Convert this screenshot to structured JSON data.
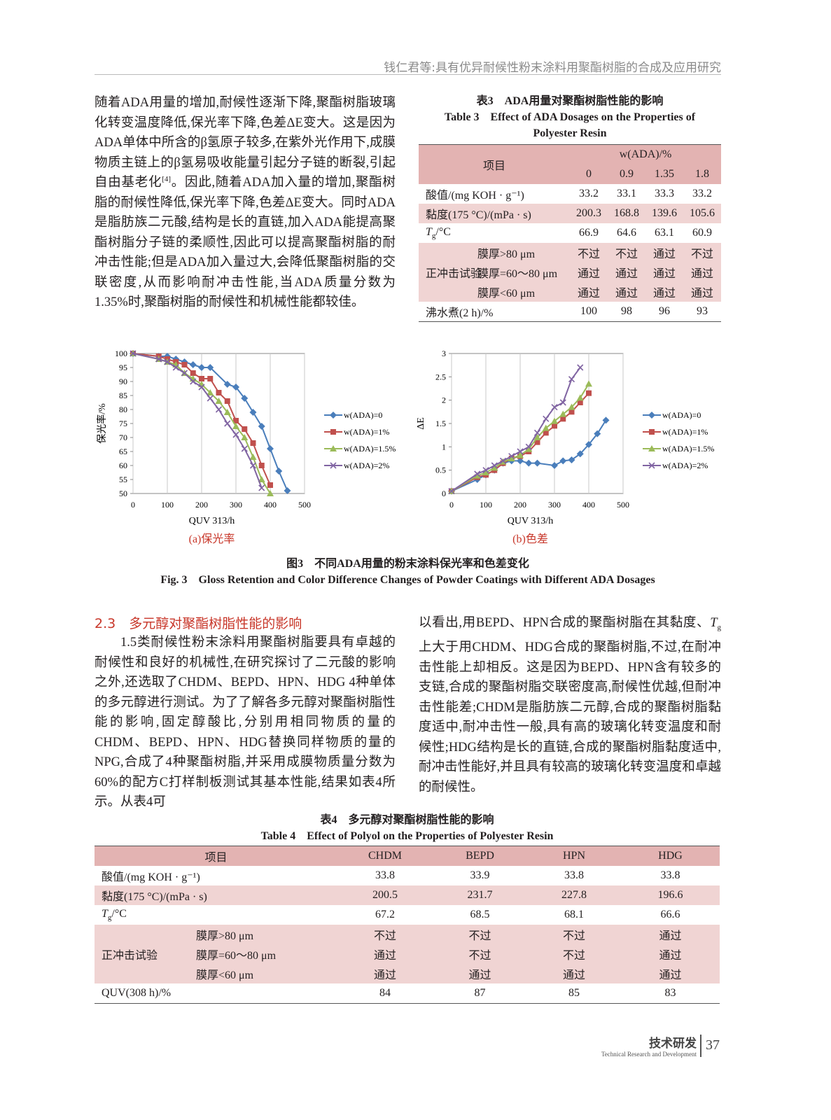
{
  "header": {
    "running_title": "钱仁君等:具有优异耐候性粉末涂料用聚酯树脂的合成及应用研究"
  },
  "body": {
    "paragraph_1": [
      "随着ADA用量的增加,耐候性逐渐下降,聚酯树脂玻璃化转变温度降低,保光率下降,色差ΔE变大。这是因为ADA单体中所含的β氢原子较多,在紫外光作用下,成膜物质主链上的β氢易吸收能量引起分子链的断裂,引起自由基老化",
      "[4]",
      "。因此,随着ADA加入量的增加,聚酯树脂的耐候性降低,保光率下降,色差ΔE变大。同时ADA是脂肪族二元酸,结构是长的直链,加入ADA能提高聚酯树脂分子链的柔顺性,因此可以提高聚酯树脂的耐冲击性能;但是ADA加入量过大,会降低聚酯树脂的交联密度,从而影响耐冲击性能,当ADA质量分数为1.35%时,聚酯树脂的耐候性和机械性能都较佳。"
    ]
  },
  "table3": {
    "title_cn": "表3　ADA用量对聚酯树脂性能的影响",
    "title_en": "Table 3　Effect of ADA Dosages on the Properties of Polyester Resin",
    "header": {
      "item": "项目",
      "group": "w(ADA)/%",
      "columns": [
        0,
        0.9,
        1.35,
        1.8
      ]
    },
    "rows": [
      {
        "label": "酸值/(mg KOH · g⁻¹)",
        "values": [
          33.2,
          33.1,
          33.3,
          33.2
        ]
      },
      {
        "label": "黏度(175 °C)/(mPa · s)",
        "values": [
          200.3,
          168.8,
          139.6,
          105.6
        ]
      },
      {
        "label": [
          "T",
          "g",
          "/°C"
        ],
        "values": [
          66.9,
          64.6,
          63.1,
          60.9
        ]
      },
      {
        "group": "正冲击试验",
        "rows": [
          {
            "label": "膜厚>80 μm",
            "values": [
              "不过",
              "不过",
              "通过",
              "不过"
            ]
          },
          {
            "label": "膜厚=60～80 μm",
            "values": [
              "通过",
              "通过",
              "通过",
              "通过"
            ]
          },
          {
            "label": "膜厚<60 μm",
            "values": [
              "通过",
              "通过",
              "通过",
              "通过"
            ]
          }
        ]
      },
      {
        "label": "沸水煮(2 h)/%",
        "values": [
          100,
          98,
          96,
          93
        ]
      }
    ]
  },
  "chart_data": [
    {
      "type": "line",
      "subcaption": "(a)保光率",
      "xlabel": "QUV 313/h",
      "ylabel": "保光率/%",
      "xlim": [
        0,
        500
      ],
      "xticks": [
        0,
        100,
        200,
        300,
        400,
        500
      ],
      "ylim": [
        50,
        100
      ],
      "yticks": [
        50,
        55,
        60,
        65,
        70,
        75,
        80,
        85,
        90,
        95,
        100
      ],
      "grid": "x",
      "legend": "right",
      "series": [
        {
          "name": "w(ADA)=0",
          "color": "#4a7ebb",
          "marker": "diamond",
          "x": [
            0,
            75,
            100,
            125,
            150,
            175,
            200,
            225,
            275,
            300,
            325,
            350,
            375,
            400,
            425,
            450
          ],
          "values": [
            100,
            99,
            99,
            98,
            97,
            96,
            95,
            95,
            89,
            88,
            84,
            79,
            74,
            66,
            58,
            51
          ]
        },
        {
          "name": "w(ADA)=1%",
          "color": "#c0504d",
          "marker": "square",
          "x": [
            0,
            75,
            100,
            125,
            150,
            175,
            200,
            225,
            250,
            275,
            300,
            325,
            350,
            375,
            400
          ],
          "values": [
            100,
            99,
            98,
            97,
            96,
            93,
            91,
            91,
            86,
            83,
            76,
            73,
            68,
            60,
            53
          ]
        },
        {
          "name": "w(ADA)=1.5%",
          "color": "#9bbb59",
          "marker": "triangle",
          "x": [
            0,
            75,
            100,
            125,
            150,
            175,
            200,
            225,
            250,
            275,
            300,
            325,
            350,
            375,
            400
          ],
          "values": [
            100,
            98,
            97,
            96,
            93,
            91,
            89,
            86,
            83,
            79,
            74,
            70,
            63,
            55,
            50
          ]
        },
        {
          "name": "w(ADA)=2%",
          "color": "#8064a2",
          "marker": "x",
          "x": [
            0,
            75,
            100,
            125,
            150,
            175,
            200,
            225,
            250,
            275,
            300,
            325,
            350,
            375
          ],
          "values": [
            100,
            98,
            97,
            95,
            93,
            90,
            88,
            84,
            80,
            75,
            71,
            66,
            60,
            52
          ]
        }
      ]
    },
    {
      "type": "line",
      "subcaption": "(b)色差",
      "xlabel": "QUV 313/h",
      "ylabel": "ΔE",
      "xlim": [
        0,
        500
      ],
      "xticks": [
        0,
        100,
        200,
        300,
        400,
        500
      ],
      "ylim": [
        0,
        3
      ],
      "yticks": [
        0,
        0.5,
        1,
        1.5,
        2,
        2.5,
        3
      ],
      "grid": "x",
      "legend": "right",
      "series": [
        {
          "name": "w(ADA)=0",
          "color": "#4a7ebb",
          "marker": "diamond",
          "x": [
            0,
            75,
            100,
            125,
            150,
            175,
            200,
            225,
            250,
            300,
            325,
            350,
            375,
            400,
            425,
            450
          ],
          "values": [
            0.05,
            0.3,
            0.4,
            0.5,
            0.65,
            0.7,
            0.7,
            0.65,
            0.65,
            0.6,
            0.7,
            0.72,
            0.85,
            1.05,
            1.28,
            1.57
          ]
        },
        {
          "name": "w(ADA)=1%",
          "color": "#c0504d",
          "marker": "square",
          "x": [
            0,
            75,
            100,
            125,
            150,
            175,
            200,
            225,
            250,
            275,
            300,
            325,
            350,
            375,
            400
          ],
          "values": [
            0.05,
            0.35,
            0.4,
            0.5,
            0.65,
            0.75,
            0.8,
            0.9,
            1.1,
            1.3,
            1.45,
            1.6,
            1.75,
            1.95,
            2.15
          ]
        },
        {
          "name": "w(ADA)=1.5%",
          "color": "#9bbb59",
          "marker": "triangle",
          "x": [
            0,
            75,
            100,
            125,
            150,
            175,
            200,
            225,
            250,
            275,
            300,
            325,
            350,
            375,
            400
          ],
          "values": [
            0.05,
            0.38,
            0.45,
            0.55,
            0.68,
            0.75,
            0.82,
            0.95,
            1.2,
            1.4,
            1.55,
            1.7,
            1.85,
            2.05,
            2.35
          ]
        },
        {
          "name": "w(ADA)=2%",
          "color": "#8064a2",
          "marker": "x",
          "x": [
            0,
            75,
            100,
            125,
            150,
            175,
            200,
            225,
            250,
            275,
            300,
            325,
            350,
            375
          ],
          "values": [
            0.05,
            0.42,
            0.5,
            0.6,
            0.7,
            0.8,
            0.9,
            1.0,
            1.3,
            1.6,
            1.85,
            1.95,
            2.45,
            2.7
          ]
        }
      ]
    }
  ],
  "figure3": {
    "caption_cn": "图3　不同ADA用量的粉末涂料保光率和色差变化",
    "caption_en": "Fig. 3　Gloss Retention and Color Difference Changes of Powder Coatings with Different ADA Dosages"
  },
  "section_2_3": {
    "number": "2.3",
    "title": "多元醇对聚酯树脂性能的影响",
    "paragraph_left": "1.5类耐候性粉末涂料用聚酯树脂要具有卓越的耐候性和良好的机械性,在研究探讨了二元酸的影响之外,还选取了CHDM、BEPD、HPN、HDG 4种单体的多元醇进行测试。为了了解各多元醇对聚酯树脂性能的影响,固定醇酸比,分别用相同物质的量的CHDM、BEPD、HPN、HDG替换同样物质的量的NPG,合成了4种聚酯树脂,并采用成膜物质量分数为60%的配方C打样制板测试其基本性能,结果如表4所示。从表4可",
    "paragraph_right": [
      "以看出,用BEPD、HPN合成的聚酯树脂在其黏度、",
      "T",
      "g",
      "上大于用CHDM、HDG合成的聚酯树脂,不过,在耐冲击性能上却相反。这是因为BEPD、HPN含有较多的支链,合成的聚酯树脂交联密度高,耐候性优越,但耐冲击性能差;CHDM是脂肪族二元醇,合成的聚酯树脂黏度适中,耐冲击性一般,具有高的玻璃化转变温度和耐候性;HDG结构是长的直链,合成的聚酯树脂黏度适中,耐冲击性能好,并且具有较高的玻璃化转变温度和卓越的耐候性。"
    ]
  },
  "table4": {
    "title_cn": "表4　多元醇对聚酯树脂性能的影响",
    "title_en": "Table 4　Effect of Polyol on the Properties of Polyester Resin",
    "header": {
      "item": "项目",
      "columns": [
        "CHDM",
        "BEPD",
        "HPN",
        "HDG"
      ]
    },
    "rows": [
      {
        "label": "酸值/(mg KOH · g⁻¹)",
        "values": [
          33.8,
          33.9,
          33.8,
          33.8
        ]
      },
      {
        "label": "黏度(175 °C)/(mPa · s)",
        "values": [
          200.5,
          231.7,
          227.8,
          196.6
        ]
      },
      {
        "label": [
          "T",
          "g",
          "/°C"
        ],
        "values": [
          67.2,
          68.5,
          68.1,
          66.6
        ]
      },
      {
        "group": "正冲击试验",
        "rows": [
          {
            "label": "膜厚>80 μm",
            "values": [
              "不过",
              "不过",
              "不过",
              "通过"
            ]
          },
          {
            "label": "膜厚=60～80 μm",
            "values": [
              "通过",
              "不过",
              "不过",
              "通过"
            ]
          },
          {
            "label": "膜厚<60 μm",
            "values": [
              "通过",
              "通过",
              "通过",
              "通过"
            ]
          }
        ]
      },
      {
        "label": "QUV(308 h)/%",
        "values": [
          84,
          87,
          85,
          83
        ]
      }
    ]
  },
  "footer": {
    "section_cn": "技术研发",
    "section_en": "Technical Research and Development",
    "page": 37
  }
}
